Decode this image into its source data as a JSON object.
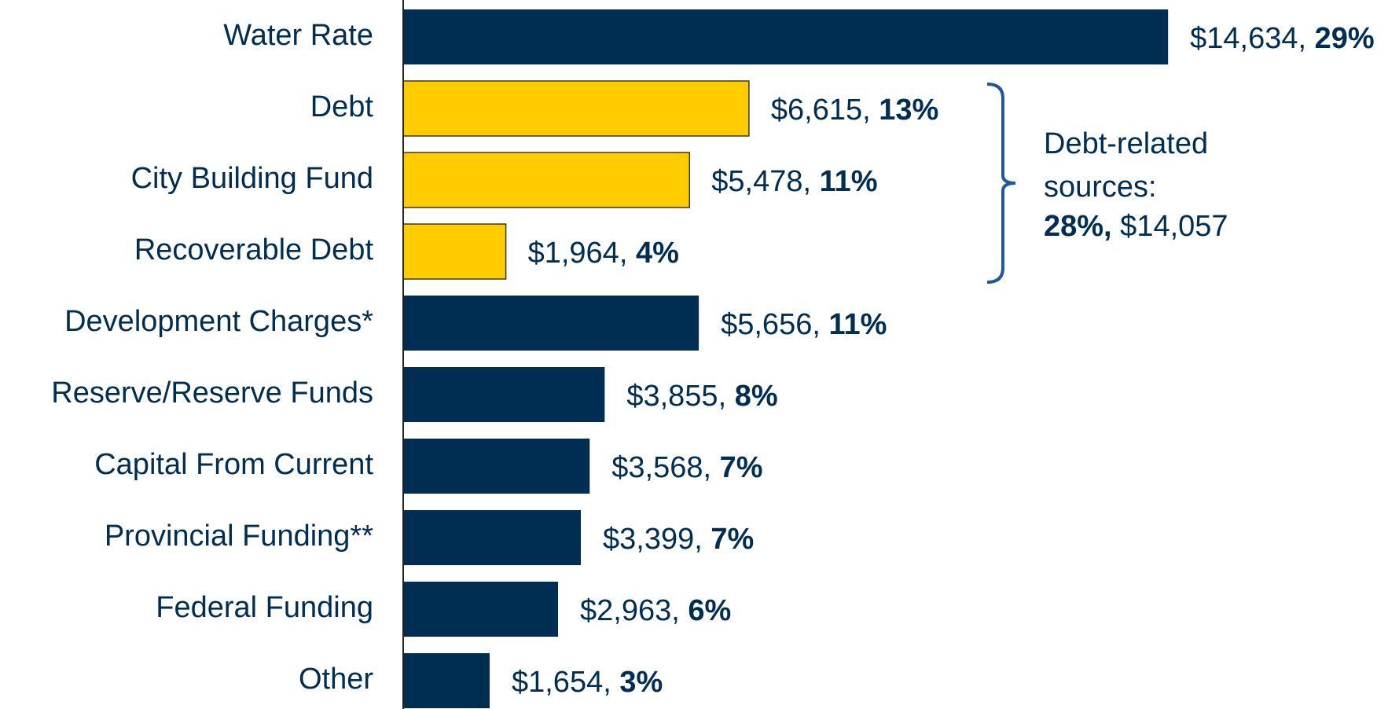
{
  "chart_data": {
    "type": "hbar",
    "categories": [
      "Water Rate",
      "Debt",
      "City Building Fund",
      "Recoverable Debt",
      "Development Charges*",
      "Reserve/Reserve Funds",
      "Capital From Current",
      "Provincial Funding**",
      "Federal Funding",
      "Other"
    ],
    "values": [
      14634,
      6615,
      5478,
      1964,
      5656,
      3855,
      3568,
      3399,
      2963,
      1654
    ],
    "value_labels": [
      "$14,634, 29%",
      "$6,615, 13%",
      "$5,478, 11%",
      "$1,964, 4%",
      "$5,656, 11%",
      "$3,855, 8%",
      "$3,568, 7%",
      "$3,399, 7%",
      "$2,963, 6%",
      "$1,654, 3%"
    ],
    "colors": [
      "#002d52",
      "#ffcc00",
      "#ffcc00",
      "#ffcc00",
      "#002d52",
      "#002d52",
      "#002d52",
      "#002d52",
      "#002d52",
      "#002d52"
    ],
    "xlim": [
      0,
      16000
    ],
    "annotation": [
      "Debt-related",
      "sources:",
      "28%, $14,057"
    ],
    "annotation_color": "#1f5a96"
  }
}
